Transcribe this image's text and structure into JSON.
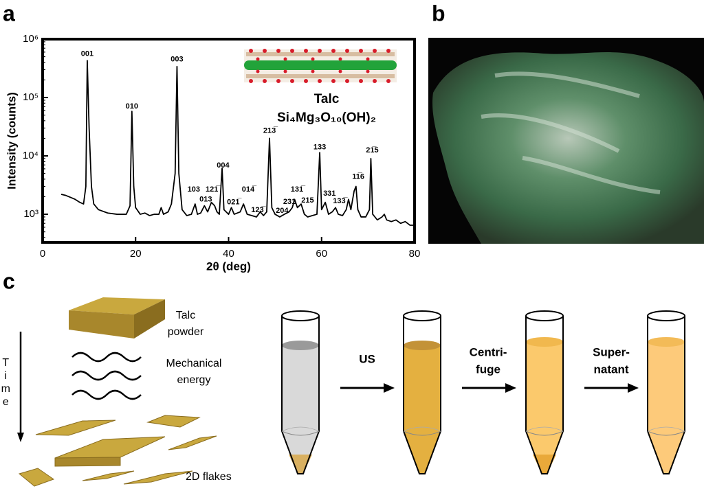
{
  "panels": [
    "a",
    "b",
    "c"
  ],
  "chart_data": {
    "type": "line",
    "xlabel": "2θ (deg)",
    "ylabel": "Intensity (counts)",
    "color": "#000000",
    "yscale": "log",
    "xlim": [
      0,
      80
    ],
    "xticks": [
      0,
      20,
      40,
      60,
      80
    ],
    "ylim": [
      330,
      1000000
    ],
    "yticks": [
      {
        "value": 1000,
        "label": "10³"
      },
      {
        "value": 10000,
        "label": "10⁴"
      },
      {
        "value": 100000,
        "label": "10⁵"
      },
      {
        "value": 1000000,
        "label": "10⁶"
      }
    ],
    "x": [
      4,
      5,
      6,
      7,
      8,
      8.8,
      9.3,
      9.6,
      10,
      10.5,
      11,
      12,
      14,
      16,
      18,
      18.8,
      19.2,
      19.6,
      20,
      21,
      22,
      23,
      24,
      25,
      25.5,
      26,
      27,
      27.7,
      28.5,
      28.9,
      29.3,
      30,
      31,
      32,
      32.8,
      33.3,
      34,
      34.8,
      35.5,
      36.3,
      37,
      37.5,
      38,
      38.6,
      39,
      40,
      40.6,
      41.2,
      42.5,
      43.2,
      44,
      45,
      46,
      46.8,
      47.5,
      48.2,
      48.8,
      49.3,
      50,
      51,
      52,
      53,
      53.7,
      54.2,
      54.8,
      55.6,
      56.3,
      57,
      58,
      59,
      59.6,
      60,
      60.8,
      61.5,
      62.3,
      63,
      63.6,
      64.5,
      65.3,
      65.8,
      66.3,
      67,
      67.4,
      67.8,
      68.5,
      69.5,
      70.3,
      70.6,
      71,
      72,
      73,
      73.5,
      74,
      75,
      76,
      77,
      78,
      79,
      80
    ],
    "values": [
      2200,
      2100,
      1950,
      1800,
      1600,
      1500,
      3000,
      430000,
      30000,
      3000,
      1500,
      1200,
      1050,
      1000,
      1000,
      1400,
      58000,
      3000,
      1300,
      1000,
      1050,
      950,
      1000,
      1000,
      1300,
      1000,
      1100,
      1500,
      5000,
      340000,
      5000,
      1200,
      950,
      1000,
      1500,
      1000,
      1050,
      1400,
      1100,
      1600,
      1400,
      1100,
      1000,
      6150,
      1200,
      1000,
      1300,
      1000,
      1100,
      1500,
      1000,
      950,
      900,
      1100,
      950,
      1100,
      20000,
      1300,
      1000,
      900,
      1000,
      1100,
      1300,
      1800,
      1300,
      1500,
      1000,
      900,
      950,
      1000,
      11400,
      1200,
      1600,
      1000,
      1100,
      1300,
      1000,
      950,
      1200,
      1800,
      1200,
      2500,
      3000,
      1200,
      900,
      900,
      1200,
      9000,
      1000,
      800,
      900,
      1000,
      800,
      750,
      800,
      700,
      750,
      650,
      650
    ],
    "annotations": [
      {
        "text": "001",
        "x": 9.6,
        "y": 560000
      },
      {
        "text": "010",
        "x": 19.2,
        "y": 70000
      },
      {
        "text": "003",
        "x": 28.9,
        "y": 450000
      },
      {
        "text": "103",
        "x": 32.5,
        "y": 2650
      },
      {
        "text": "013",
        "x": 35.1,
        "y": 1800
      },
      {
        "text": "121̅",
        "x": 36.4,
        "y": 2650
      },
      {
        "text": "004",
        "x": 38.8,
        "y": 6800
      },
      {
        "text": "021̅",
        "x": 41.0,
        "y": 1600
      },
      {
        "text": "014̅",
        "x": 44.2,
        "y": 2650
      },
      {
        "text": "123̅",
        "x": 46.2,
        "y": 1180
      },
      {
        "text": "213̅",
        "x": 48.8,
        "y": 27000
      },
      {
        "text": "204",
        "x": 51.5,
        "y": 1150
      },
      {
        "text": "231",
        "x": 53.1,
        "y": 1630
      },
      {
        "text": "131̅",
        "x": 54.7,
        "y": 2650
      },
      {
        "text": "215",
        "x": 57.0,
        "y": 1720
      },
      {
        "text": "133",
        "x": 59.6,
        "y": 14000
      },
      {
        "text": "331",
        "x": 61.7,
        "y": 2250
      },
      {
        "text": "133̅",
        "x": 63.8,
        "y": 1670
      },
      {
        "text": "11̅6",
        "x": 67.9,
        "y": 4400
      },
      {
        "text": "21̅5",
        "x": 70.9,
        "y": 12400
      }
    ],
    "inset_title": "Talc",
    "inset_formula": "Si₄Mg₃O₁₀(OH)₂"
  },
  "diagram": {
    "time": "Time",
    "powder": [
      "Talc",
      "powder"
    ],
    "energy": [
      "Mechanical",
      "energy"
    ],
    "flakes": "2D flakes",
    "steps": [
      [
        "US"
      ],
      [
        "Centri-",
        "fuge"
      ],
      [
        "Super-",
        "natant"
      ]
    ]
  }
}
